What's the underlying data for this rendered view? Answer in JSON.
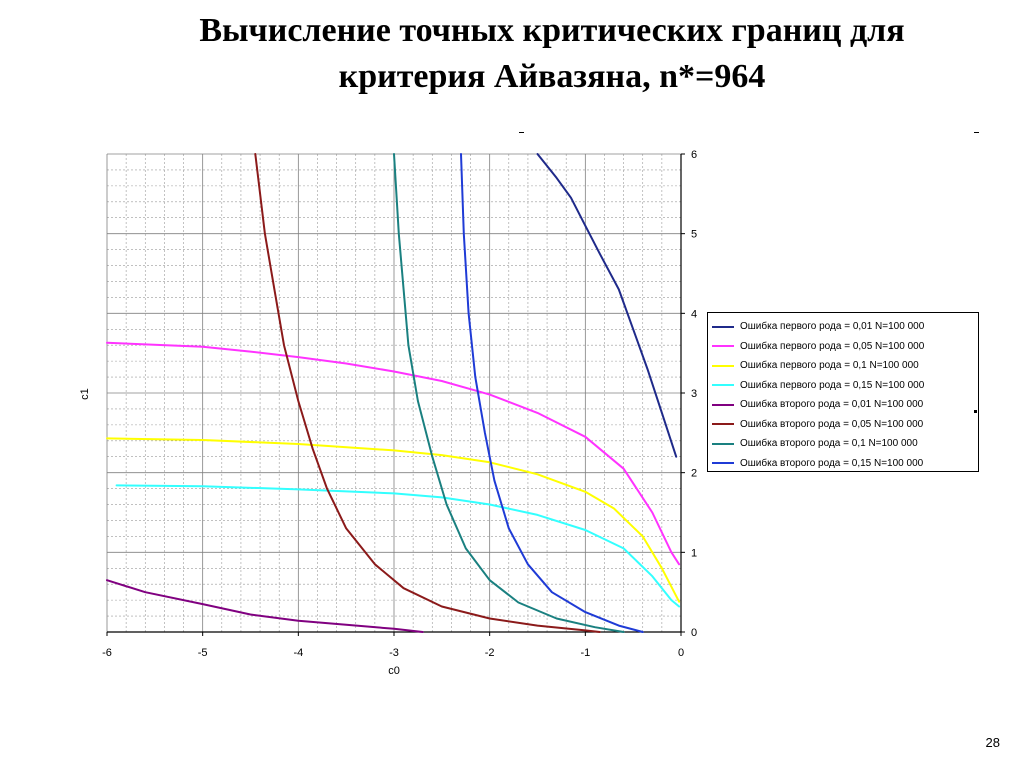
{
  "slide": {
    "title_line1": "Вычисление точных критических границ для",
    "title_line2": "критерия Айвазяна, n*=964",
    "page_number": "28"
  },
  "chart_data": {
    "type": "line",
    "xlabel": "c0",
    "ylabel": "c1",
    "xlim": [
      -6,
      0
    ],
    "ylim": [
      0,
      6
    ],
    "x_ticks": [
      "-6",
      "-5",
      "-4",
      "-3",
      "-2",
      "-1",
      "0"
    ],
    "y_ticks": [
      "0",
      "1",
      "2",
      "3",
      "4",
      "5",
      "6"
    ],
    "grid": true,
    "legend_position": "right",
    "series": [
      {
        "name": "Ошибка первого рода  = 0,01 N=100 000",
        "color": "#1f2a8a",
        "points": [
          [
            -1.5,
            6.0
          ],
          [
            -1.3,
            5.7
          ],
          [
            -1.15,
            5.45
          ],
          [
            -1.0,
            5.1
          ],
          [
            -0.85,
            4.75
          ],
          [
            -0.65,
            4.3
          ],
          [
            -0.5,
            3.8
          ],
          [
            -0.35,
            3.3
          ],
          [
            -0.2,
            2.75
          ],
          [
            -0.05,
            2.2
          ]
        ]
      },
      {
        "name": "Ошибка первого рода  = 0,05 N=100 000",
        "color": "#ff33ff",
        "points": [
          [
            -6.0,
            3.63
          ],
          [
            -5.0,
            3.58
          ],
          [
            -4.5,
            3.52
          ],
          [
            -4.0,
            3.45
          ],
          [
            -3.5,
            3.37
          ],
          [
            -3.0,
            3.27
          ],
          [
            -2.5,
            3.15
          ],
          [
            -2.0,
            2.98
          ],
          [
            -1.5,
            2.75
          ],
          [
            -1.0,
            2.45
          ],
          [
            -0.6,
            2.05
          ],
          [
            -0.3,
            1.5
          ],
          [
            -0.1,
            1.0
          ],
          [
            -0.02,
            0.85
          ]
        ]
      },
      {
        "name": "Ошибка первого рода  = 0,1 N=100 000",
        "color": "#ffff00",
        "points": [
          [
            -6.0,
            2.43
          ],
          [
            -5.0,
            2.41
          ],
          [
            -4.0,
            2.36
          ],
          [
            -3.0,
            2.28
          ],
          [
            -2.5,
            2.22
          ],
          [
            -2.0,
            2.13
          ],
          [
            -1.5,
            1.98
          ],
          [
            -1.0,
            1.76
          ],
          [
            -0.7,
            1.55
          ],
          [
            -0.4,
            1.2
          ],
          [
            -0.2,
            0.8
          ],
          [
            -0.05,
            0.45
          ],
          [
            -0.02,
            0.38
          ]
        ]
      },
      {
        "name": "Ошибка первого рода  = 0,15 N=100 000",
        "color": "#33ffff",
        "points": [
          [
            -5.9,
            1.84
          ],
          [
            -5.0,
            1.83
          ],
          [
            -4.0,
            1.79
          ],
          [
            -3.0,
            1.74
          ],
          [
            -2.5,
            1.69
          ],
          [
            -2.0,
            1.6
          ],
          [
            -1.5,
            1.47
          ],
          [
            -1.0,
            1.28
          ],
          [
            -0.6,
            1.05
          ],
          [
            -0.3,
            0.7
          ],
          [
            -0.1,
            0.4
          ],
          [
            -0.02,
            0.32
          ]
        ]
      },
      {
        "name": "Ошибка второго рода  = 0,01 N=100 000",
        "color": "#800080",
        "points": [
          [
            -6.0,
            0.65
          ],
          [
            -5.6,
            0.5
          ],
          [
            -5.0,
            0.35
          ],
          [
            -4.5,
            0.22
          ],
          [
            -4.0,
            0.14
          ],
          [
            -3.5,
            0.09
          ],
          [
            -3.0,
            0.04
          ],
          [
            -2.7,
            0.0
          ]
        ]
      },
      {
        "name": "Ошибка второго рода  = 0,05 N=100 000",
        "color": "#8b1a1a",
        "points": [
          [
            -4.45,
            6.0
          ],
          [
            -4.35,
            5.0
          ],
          [
            -4.25,
            4.3
          ],
          [
            -4.15,
            3.6
          ],
          [
            -4.0,
            2.9
          ],
          [
            -3.85,
            2.3
          ],
          [
            -3.7,
            1.8
          ],
          [
            -3.5,
            1.3
          ],
          [
            -3.2,
            0.85
          ],
          [
            -2.9,
            0.55
          ],
          [
            -2.5,
            0.32
          ],
          [
            -2.0,
            0.17
          ],
          [
            -1.5,
            0.08
          ],
          [
            -1.0,
            0.02
          ],
          [
            -0.85,
            0.0
          ]
        ]
      },
      {
        "name": "Ошибка второго рода  = 0,1 N=100 000",
        "color": "#1a8080",
        "points": [
          [
            -3.0,
            6.0
          ],
          [
            -2.95,
            5.0
          ],
          [
            -2.9,
            4.3
          ],
          [
            -2.85,
            3.6
          ],
          [
            -2.75,
            2.9
          ],
          [
            -2.6,
            2.2
          ],
          [
            -2.45,
            1.6
          ],
          [
            -2.25,
            1.05
          ],
          [
            -2.0,
            0.65
          ],
          [
            -1.7,
            0.37
          ],
          [
            -1.3,
            0.17
          ],
          [
            -0.9,
            0.06
          ],
          [
            -0.6,
            0.0
          ]
        ]
      },
      {
        "name": "Ошибка второго рода  = 0,15 N=100 000",
        "color": "#1f3bd6",
        "points": [
          [
            -2.3,
            6.0
          ],
          [
            -2.27,
            5.0
          ],
          [
            -2.22,
            4.0
          ],
          [
            -2.15,
            3.2
          ],
          [
            -2.05,
            2.5
          ],
          [
            -1.95,
            1.9
          ],
          [
            -1.8,
            1.3
          ],
          [
            -1.6,
            0.85
          ],
          [
            -1.35,
            0.5
          ],
          [
            -1.0,
            0.25
          ],
          [
            -0.65,
            0.08
          ],
          [
            -0.4,
            0.0
          ]
        ]
      }
    ]
  }
}
